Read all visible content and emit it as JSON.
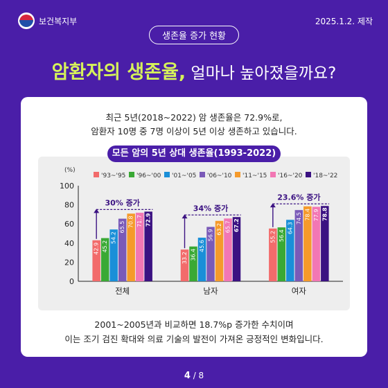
{
  "header": {
    "org": "보건복지부",
    "date": "2025.1.2. 제작",
    "badge": "생존율 증가 현황",
    "headline_accent": "암환자의 생존율,",
    "headline_rest": " 얼마나 높아졌을까요?"
  },
  "intro": {
    "line1": "최근 5년(2018~2022) 암 생존율은 72.9%로,",
    "line2": "암환자 10명 중 7명 이상이 5년 이상 생존하고 있습니다."
  },
  "footer": {
    "line1": "2001~2005년과 비교하면 18.7%p 증가한 수치이며",
    "line2": "이는 조기 검진 확대와 의료 기술의 발전이 가져온 긍정적인 변화입니다."
  },
  "pager": {
    "current": "4",
    "total": "/ 8"
  },
  "colors": {
    "background": "#4a1ea8",
    "accent": "#d6f25a"
  },
  "chart_data": {
    "type": "bar",
    "title": "모든 암의 5년 상대 생존율(1993-2022)",
    "unit": "(%)",
    "ylim": [
      0,
      100
    ],
    "yticks": [
      0,
      20,
      40,
      60,
      80,
      100
    ],
    "legend_position": "top",
    "categories": [
      "전체",
      "남자",
      "여자"
    ],
    "series": [
      {
        "name": "'93~'95",
        "color": "#f26b6b",
        "values": [
          42.9,
          33.2,
          55.2
        ]
      },
      {
        "name": "'96~'00",
        "color": "#3aa935",
        "values": [
          45.2,
          36.4,
          56.4
        ]
      },
      {
        "name": "'01~'05",
        "color": "#1a8fd8",
        "values": [
          54.2,
          45.6,
          64.3
        ]
      },
      {
        "name": "'06~'10",
        "color": "#7a5ab8",
        "values": [
          65.5,
          56.9,
          74.5
        ]
      },
      {
        "name": "'11~'15",
        "color": "#f59a2b",
        "values": [
          70.8,
          63.2,
          78.4
        ]
      },
      {
        "name": "'16~'20",
        "color": "#f277b4",
        "values": [
          71.7,
          65.7,
          77.9
        ]
      },
      {
        "name": "'18~'22",
        "color": "#3b1282",
        "values": [
          72.9,
          67.2,
          78.8
        ]
      }
    ],
    "annotations": [
      {
        "category": "전체",
        "text": "30% 증가"
      },
      {
        "category": "남자",
        "text": "34% 증가"
      },
      {
        "category": "여자",
        "text": "23.6% 증가"
      }
    ]
  }
}
